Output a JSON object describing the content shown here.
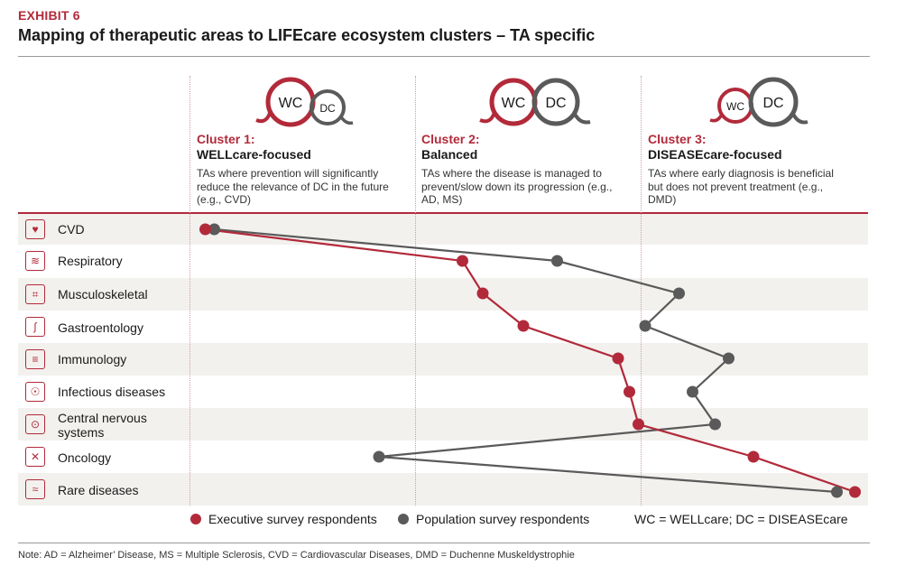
{
  "exhibit": "EXHIBIT 6",
  "title": "Mapping of therapeutic areas to LIFEcare ecosystem clusters – TA specific",
  "clusters": [
    {
      "label": "Cluster 1:",
      "name": "WELLcare-focused",
      "desc": "TAs where prevention will significantly reduce the relevance of DC in the future (e.g., CVD)",
      "logo_left": "WC",
      "logo_right": "DC"
    },
    {
      "label": "Cluster 2:",
      "name": "Balanced",
      "desc": "TAs where the disease is managed to prevent/slow down its progression (e.g., AD, MS)",
      "logo_left": "WC",
      "logo_right": "DC"
    },
    {
      "label": "Cluster 3:",
      "name": "DISEASEcare-focused",
      "desc": "TAs where early diagnosis is beneficial but does not prevent treatment (e.g., DMD)",
      "logo_left": "WC",
      "logo_right": "DC"
    }
  ],
  "rows": [
    {
      "label": "CVD",
      "icon": "heart-pulse-icon"
    },
    {
      "label": "Respiratory",
      "icon": "lungs-icon"
    },
    {
      "label": "Musculoskeletal",
      "icon": "bone-icon"
    },
    {
      "label": "Gastroentology",
      "icon": "stomach-icon"
    },
    {
      "label": "Immunology",
      "icon": "mask-icon"
    },
    {
      "label": "Infectious diseases",
      "icon": "virus-head-icon"
    },
    {
      "label": "Central nervous systems",
      "icon": "brain-icon"
    },
    {
      "label": "Oncology",
      "icon": "ribbon-icon"
    },
    {
      "label": "Rare diseases",
      "icon": "dna-icon"
    }
  ],
  "legend": {
    "executive": "Executive survey respondents",
    "population": "Population survey respondents",
    "abbrev": "WC = WELLcare; DC = DISEASEcare"
  },
  "note": "Note: AD = Alzheimer’ Disease, MS = Multiple Sclerosis, CVD = Cardiovascular Diseases, DMD = Duchenne Muskeldystrophie",
  "colors": {
    "executive": "#b22a3a",
    "population": "#5a5a5a",
    "band": "#f2f1ee"
  },
  "chart_data": {
    "type": "line",
    "categories": [
      "CVD",
      "Respiratory",
      "Musculoskeletal",
      "Gastroentology",
      "Immunology",
      "Infectious diseases",
      "Central nervous systems",
      "Oncology",
      "Rare diseases"
    ],
    "x_scale": "cluster position, 0 = WELLcare-focused edge, 3 = DISEASEcare-focused edge",
    "xlim": [
      0,
      3
    ],
    "series": [
      {
        "name": "Executive survey respondents",
        "values": [
          0.07,
          1.21,
          1.3,
          1.48,
          1.9,
          1.95,
          1.99,
          2.5,
          2.95
        ]
      },
      {
        "name": "Population survey respondents",
        "values": [
          0.11,
          1.63,
          2.17,
          2.02,
          2.39,
          2.23,
          2.33,
          0.84,
          2.87
        ]
      }
    ]
  }
}
